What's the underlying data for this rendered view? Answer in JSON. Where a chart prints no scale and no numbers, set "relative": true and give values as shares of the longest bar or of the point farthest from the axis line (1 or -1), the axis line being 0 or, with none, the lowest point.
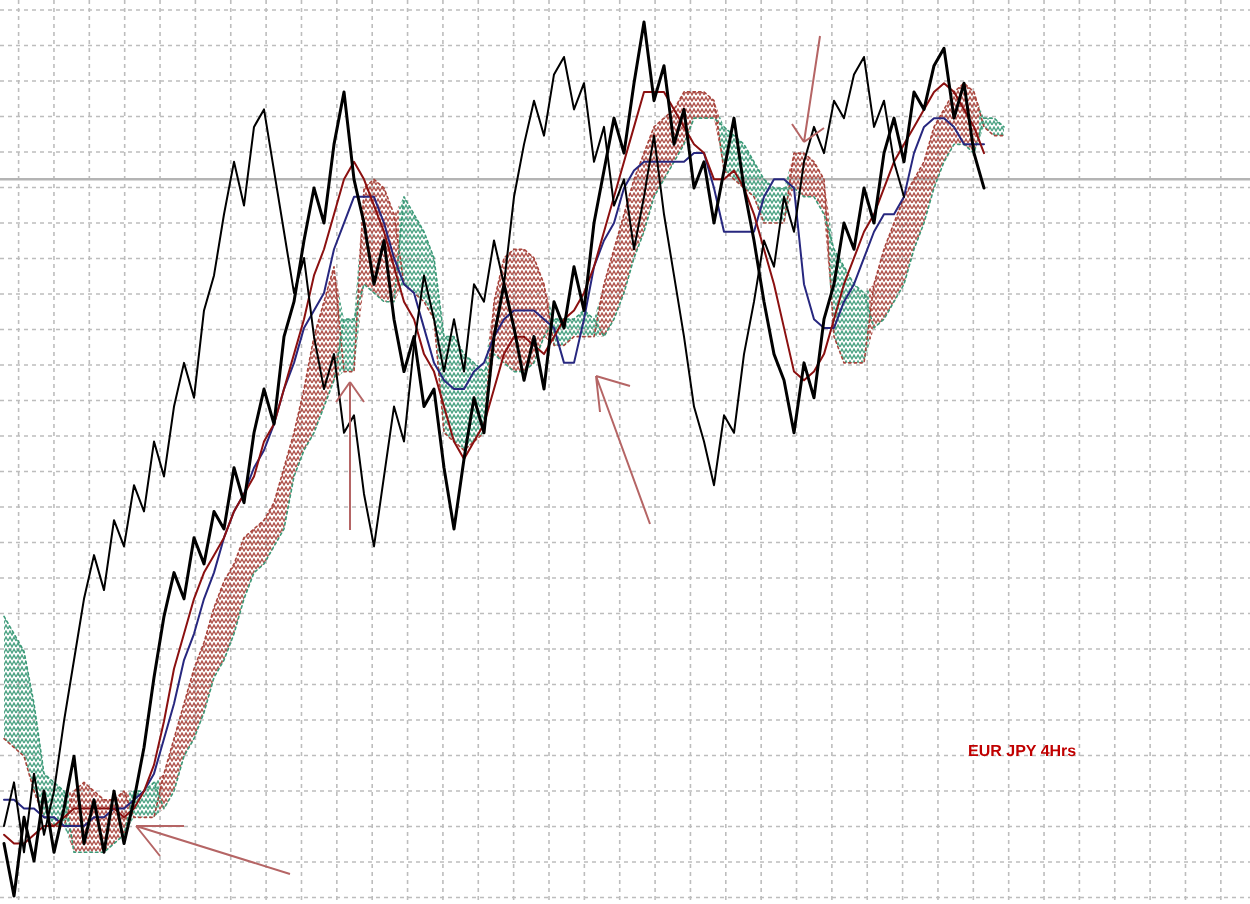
{
  "chart_data": {
    "type": "line",
    "title": "EUR JPY 4Hrs",
    "relative": true,
    "grid": true,
    "categories": [
      null,
      null,
      null,
      null,
      null,
      null,
      null,
      null,
      null,
      null,
      null,
      null,
      null,
      null,
      null,
      null,
      null,
      null,
      null,
      null,
      null,
      null,
      null,
      null,
      null,
      null,
      null,
      null,
      null,
      null,
      null,
      null,
      null,
      null,
      null,
      null,
      null,
      null,
      null,
      null,
      null,
      null,
      null,
      null,
      null,
      null,
      null,
      null,
      null,
      null,
      null,
      null,
      null,
      null,
      null,
      null,
      null,
      null,
      null,
      null,
      null,
      null,
      null,
      null,
      null,
      null,
      null,
      null,
      null,
      null,
      null,
      null,
      null,
      null,
      null,
      null,
      null,
      null,
      null,
      null,
      null,
      null,
      null,
      null,
      null,
      null,
      null,
      null,
      null,
      null,
      null,
      null,
      null,
      null,
      null,
      null,
      null,
      null,
      null,
      null,
      null
    ],
    "ref_lines": [
      {
        "axis": "y",
        "value": 0.82,
        "color": "#b4b4b4"
      }
    ],
    "series": [
      {
        "color": "#a8443c",
        "line_style": "dotted",
        "values": [
          0.18,
          0.17,
          0.16,
          0.12,
          0.09,
          0.08,
          0.08,
          0.12,
          0.13,
          0.12,
          0.11,
          0.11,
          0.12,
          0.09,
          0.09,
          0.09,
          0.14,
          0.18,
          0.22,
          0.26,
          0.29,
          0.33,
          0.36,
          0.38,
          0.41,
          0.42,
          0.43,
          0.45,
          0.49,
          0.53,
          0.58,
          0.64,
          0.68,
          0.72,
          0.6,
          0.6,
          0.81,
          0.82,
          0.81,
          0.78,
          0.7,
          0.69,
          0.68,
          0.66,
          0.53,
          0.52,
          0.51,
          0.52,
          0.53,
          0.68,
          0.73,
          0.74,
          0.74,
          0.73,
          0.7,
          0.63,
          0.63,
          0.64,
          0.64,
          0.64,
          0.7,
          0.74,
          0.78,
          0.82,
          0.85,
          0.88,
          0.89,
          0.9,
          0.92,
          0.92,
          0.92,
          0.91,
          0.83,
          0.82,
          0.81,
          0.8,
          0.77,
          0.77,
          0.77,
          0.85,
          0.85,
          0.84,
          0.82,
          0.64,
          0.61,
          0.61,
          0.61,
          0.7,
          0.74,
          0.77,
          0.8,
          0.82,
          0.84,
          0.88,
          0.9,
          0.92,
          0.93,
          0.92,
          0.88,
          0.87,
          0.87
        ],
        "lower": [
          0.18,
          0.17,
          0.16,
          0.12,
          0.09,
          0.08,
          0.08,
          0.05,
          0.05,
          0.05,
          0.05,
          0.06,
          0.07,
          0.09,
          0.09,
          0.09,
          0.1,
          0.12,
          0.16,
          0.18,
          0.21,
          0.25,
          0.27,
          0.3,
          0.34,
          0.37,
          0.38,
          0.4,
          0.42,
          0.48,
          0.51,
          0.53,
          0.56,
          0.59,
          0.6,
          0.6,
          0.7,
          0.69,
          0.68,
          0.68,
          0.7,
          0.69,
          0.68,
          0.66,
          0.53,
          0.52,
          0.51,
          0.52,
          0.53,
          0.62,
          0.61,
          0.6,
          0.6,
          0.61,
          0.64,
          0.63,
          0.63,
          0.64,
          0.64,
          0.64,
          0.64,
          0.66,
          0.69,
          0.73,
          0.76,
          0.8,
          0.82,
          0.84,
          0.86,
          0.89,
          0.89,
          0.89,
          0.83,
          0.82,
          0.81,
          0.8,
          0.77,
          0.77,
          0.77,
          0.81,
          0.8,
          0.8,
          0.78,
          0.64,
          0.61,
          0.61,
          0.61,
          0.65,
          0.66,
          0.68,
          0.7,
          0.74,
          0.77,
          0.81,
          0.84,
          0.86,
          0.86,
          0.85,
          0.88,
          0.87,
          0.87
        ],
        "upper": [
          0.32,
          0.3,
          0.28,
          0.22,
          0.14,
          0.13,
          0.12,
          0.12,
          0.13,
          0.12,
          0.11,
          0.11,
          0.12,
          0.12,
          0.12,
          0.13,
          0.14,
          0.18,
          0.22,
          0.26,
          0.29,
          0.33,
          0.36,
          0.38,
          0.41,
          0.42,
          0.43,
          0.45,
          0.49,
          0.53,
          0.58,
          0.64,
          0.68,
          0.72,
          0.66,
          0.66,
          0.81,
          0.82,
          0.81,
          0.78,
          0.8,
          0.78,
          0.76,
          0.73,
          0.64,
          0.64,
          0.62,
          0.61,
          0.6,
          0.68,
          0.73,
          0.74,
          0.74,
          0.73,
          0.7,
          0.66,
          0.66,
          0.66,
          0.67,
          0.66,
          0.7,
          0.74,
          0.78,
          0.82,
          0.85,
          0.88,
          0.89,
          0.9,
          0.92,
          0.92,
          0.92,
          0.91,
          0.88,
          0.87,
          0.86,
          0.84,
          0.82,
          0.81,
          0.81,
          0.85,
          0.85,
          0.84,
          0.82,
          0.74,
          0.72,
          0.7,
          0.69,
          0.7,
          0.74,
          0.77,
          0.8,
          0.82,
          0.84,
          0.88,
          0.9,
          0.92,
          0.93,
          0.92,
          0.89,
          0.89,
          0.88
        ]
      },
      {
        "color": "#3c9a78",
        "line_style": "dotted",
        "values": [
          0.32,
          0.3,
          0.28,
          0.22,
          0.14,
          0.13,
          0.12,
          0.05,
          0.05,
          0.05,
          0.05,
          0.06,
          0.07,
          0.12,
          0.12,
          0.13,
          0.1,
          0.12,
          0.16,
          0.18,
          0.21,
          0.25,
          0.27,
          0.3,
          0.34,
          0.37,
          0.38,
          0.4,
          0.42,
          0.48,
          0.51,
          0.53,
          0.56,
          0.59,
          0.66,
          0.66,
          0.7,
          0.69,
          0.68,
          0.68,
          0.8,
          0.78,
          0.76,
          0.73,
          0.64,
          0.64,
          0.62,
          0.61,
          0.6,
          0.62,
          0.61,
          0.6,
          0.6,
          0.61,
          0.64,
          0.66,
          0.66,
          0.66,
          0.67,
          0.66,
          0.64,
          0.66,
          0.69,
          0.73,
          0.76,
          0.8,
          0.82,
          0.84,
          0.86,
          0.89,
          0.89,
          0.89,
          0.88,
          0.87,
          0.86,
          0.84,
          0.82,
          0.81,
          0.81,
          0.81,
          0.8,
          0.8,
          0.78,
          0.74,
          0.72,
          0.7,
          0.69,
          0.65,
          0.66,
          0.68,
          0.7,
          0.74,
          0.77,
          0.81,
          0.84,
          0.86,
          0.86,
          0.85,
          0.89,
          0.89,
          0.88
        ]
      },
      {
        "color": "#27277f",
        "values": [
          0.11,
          0.11,
          0.1,
          0.1,
          0.09,
          0.09,
          0.08,
          0.08,
          0.08,
          0.09,
          0.09,
          0.1,
          0.1,
          0.11,
          0.12,
          0.14,
          0.18,
          0.22,
          0.27,
          0.3,
          0.34,
          0.37,
          0.41,
          0.44,
          0.46,
          0.49,
          0.51,
          0.54,
          0.58,
          0.61,
          0.65,
          0.67,
          0.69,
          0.74,
          0.77,
          0.8,
          0.8,
          0.8,
          0.77,
          0.73,
          0.7,
          0.69,
          0.65,
          0.61,
          0.59,
          0.58,
          0.58,
          0.6,
          0.61,
          0.64,
          0.66,
          0.67,
          0.67,
          0.67,
          0.66,
          0.65,
          0.61,
          0.61,
          0.66,
          0.72,
          0.75,
          0.77,
          0.81,
          0.83,
          0.84,
          0.84,
          0.84,
          0.84,
          0.84,
          0.85,
          0.85,
          0.81,
          0.76,
          0.76,
          0.76,
          0.76,
          0.8,
          0.82,
          0.82,
          0.81,
          0.7,
          0.66,
          0.65,
          0.65,
          0.68,
          0.7,
          0.73,
          0.76,
          0.78,
          0.78,
          0.8,
          0.85,
          0.88,
          0.89,
          0.89,
          0.88,
          0.86,
          0.86,
          0.86,
          null,
          null
        ]
      },
      {
        "color": "#8b1010",
        "values": [
          0.07,
          0.06,
          0.06,
          0.07,
          0.08,
          0.08,
          0.09,
          0.1,
          0.1,
          0.1,
          0.1,
          0.1,
          0.09,
          0.1,
          0.12,
          0.15,
          0.2,
          0.26,
          0.3,
          0.34,
          0.37,
          0.39,
          0.41,
          0.44,
          0.46,
          0.48,
          0.52,
          0.54,
          0.58,
          0.62,
          0.66,
          0.71,
          0.74,
          0.78,
          0.82,
          0.84,
          0.82,
          0.79,
          0.76,
          0.72,
          0.68,
          0.66,
          0.62,
          0.6,
          0.56,
          0.52,
          0.5,
          0.52,
          0.54,
          0.58,
          0.62,
          0.64,
          0.64,
          0.63,
          0.62,
          0.64,
          0.66,
          0.67,
          0.69,
          0.72,
          0.76,
          0.8,
          0.84,
          0.88,
          0.92,
          0.92,
          0.92,
          0.9,
          0.88,
          0.86,
          0.85,
          0.82,
          0.82,
          0.83,
          0.81,
          0.78,
          0.74,
          0.7,
          0.65,
          0.6,
          0.59,
          0.6,
          0.62,
          0.66,
          0.7,
          0.73,
          0.76,
          0.78,
          0.81,
          0.84,
          0.86,
          0.88,
          0.9,
          0.92,
          0.93,
          0.92,
          0.9,
          0.88,
          0.85,
          null,
          null
        ]
      },
      {
        "color": "#000000",
        "values": [
          0.08,
          0.13,
          0.05,
          0.14,
          0.07,
          0.12,
          0.2,
          0.27,
          0.34,
          0.39,
          0.35,
          0.43,
          0.4,
          0.47,
          0.44,
          0.52,
          0.48,
          0.56,
          0.61,
          0.57,
          0.67,
          0.71,
          0.78,
          0.84,
          0.79,
          0.88,
          0.9,
          0.83,
          0.76,
          0.69,
          0.73,
          0.64,
          0.58,
          0.62,
          0.53,
          0.55,
          0.46,
          0.4,
          0.48,
          0.56,
          0.52,
          0.63,
          0.71,
          0.66,
          0.6,
          0.66,
          0.6,
          0.7,
          0.68,
          0.75,
          0.7,
          0.8,
          0.86,
          0.91,
          0.87,
          0.94,
          0.96,
          0.9,
          0.93,
          0.84,
          0.88,
          0.79,
          0.82,
          0.74,
          0.8,
          0.87,
          0.78,
          0.71,
          0.64,
          0.56,
          0.52,
          0.47,
          0.55,
          0.53,
          0.62,
          0.68,
          0.75,
          0.72,
          0.8,
          0.76,
          0.84,
          0.88,
          0.85,
          0.91,
          0.89,
          0.94,
          0.96,
          0.88,
          0.91,
          0.84,
          0.8,
          null,
          null,
          null,
          null,
          null,
          null,
          null,
          null,
          null,
          null
        ]
      },
      {
        "color": "#000000",
        "values": [
          0.06,
          0,
          0.09,
          0.04,
          0.12,
          0.05,
          0.1,
          0.16,
          0.06,
          0.11,
          0.05,
          0.12,
          0.06,
          0.11,
          0.17,
          0.25,
          0.32,
          0.37,
          0.34,
          0.41,
          0.38,
          0.44,
          0.42,
          0.49,
          0.45,
          0.53,
          0.58,
          0.54,
          0.64,
          0.68,
          0.75,
          0.81,
          0.77,
          0.86,
          0.92,
          0.82,
          0.77,
          0.7,
          0.75,
          0.66,
          0.6,
          0.64,
          0.56,
          0.58,
          0.49,
          0.42,
          0.5,
          0.57,
          0.53,
          0.64,
          0.7,
          0.65,
          0.59,
          0.64,
          0.58,
          0.68,
          0.65,
          0.72,
          0.67,
          0.77,
          0.83,
          0.89,
          0.85,
          0.93,
          1,
          0.91,
          0.95,
          0.86,
          0.9,
          0.81,
          0.84,
          0.77,
          0.83,
          0.89,
          0.81,
          0.75,
          0.68,
          0.62,
          0.59,
          0.53,
          0.61,
          0.57,
          0.66,
          0.7,
          0.77,
          0.74,
          0.81,
          0.77,
          0.85,
          0.89,
          0.84,
          0.92,
          0.9,
          0.95,
          0.97,
          0.89,
          0.93,
          0.85,
          0.81,
          null,
          null
        ]
      }
    ]
  }
}
